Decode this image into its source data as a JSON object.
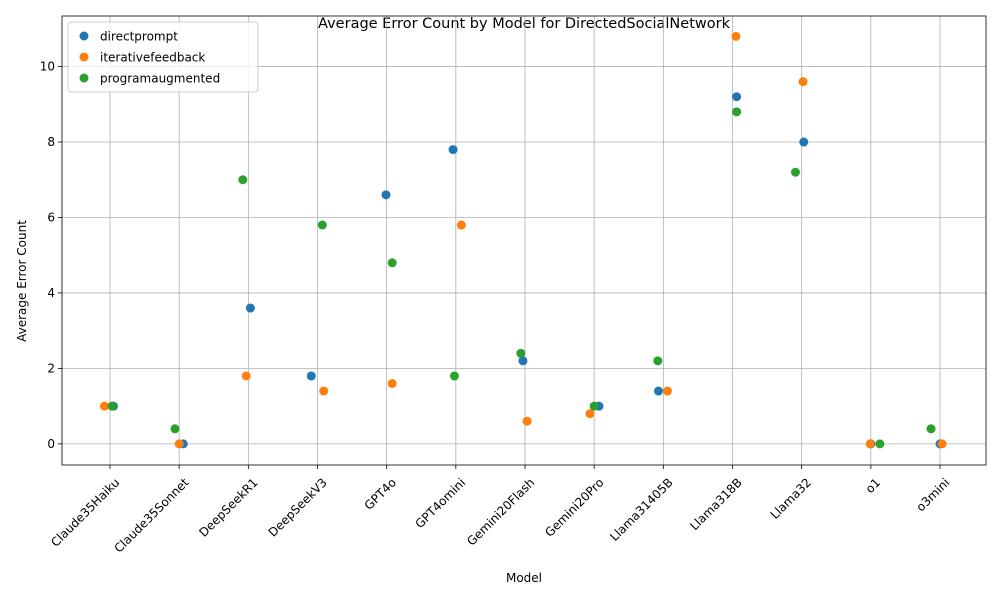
{
  "chart_data": {
    "type": "scatter",
    "title": "Average Error Count by Model for DirectedSocialNetwork",
    "xlabel": "Model",
    "ylabel": "Average Error Count",
    "categories": [
      "Claude35Haiku",
      "Claude35Sonnet",
      "DeepSeekR1",
      "DeepSeekV3",
      "GPT4o",
      "GPT4omini",
      "Gemini20Flash",
      "Gemini20Pro",
      "Llama31405B",
      "Llama318B",
      "Llama32",
      "o1",
      "o3mini"
    ],
    "ylim": [
      -0.56,
      11.34
    ],
    "yticks": [
      0,
      2,
      4,
      6,
      8,
      10
    ],
    "ytick_labels": [
      "0",
      "2",
      "4",
      "6",
      "8",
      "10"
    ],
    "grid": true,
    "legend_position": "upper-left",
    "series": [
      {
        "name": "directprompt",
        "color": "#1f77b4",
        "values": [
          1.0,
          0.0,
          3.6,
          1.8,
          6.6,
          7.8,
          2.2,
          1.0,
          1.4,
          9.2,
          8.0,
          0.0,
          0.0
        ],
        "jitter": [
          0.05,
          0.06,
          0.03,
          -0.09,
          -0.01,
          -0.04,
          -0.03,
          0.07,
          -0.07,
          0.06,
          0.03,
          0.0,
          0.0
        ]
      },
      {
        "name": "iterativefeedback",
        "color": "#ff7f0e",
        "values": [
          1.0,
          0.0,
          1.8,
          1.4,
          1.6,
          5.8,
          0.6,
          0.8,
          1.4,
          10.8,
          9.6,
          0.0,
          0.0
        ],
        "jitter": [
          -0.08,
          0.0,
          -0.03,
          0.09,
          0.08,
          0.08,
          0.03,
          -0.06,
          0.06,
          0.05,
          0.02,
          -0.01,
          0.03
        ]
      },
      {
        "name": "programaugmented",
        "color": "#2ca02c",
        "values": [
          1.0,
          0.4,
          7.0,
          5.8,
          4.8,
          1.8,
          2.4,
          1.0,
          2.2,
          8.8,
          7.2,
          0.0,
          0.4
        ],
        "jitter": [
          0.03,
          -0.06,
          -0.08,
          0.07,
          0.08,
          -0.02,
          -0.06,
          0.0,
          -0.08,
          0.06,
          -0.09,
          0.13,
          -0.13
        ]
      }
    ]
  }
}
